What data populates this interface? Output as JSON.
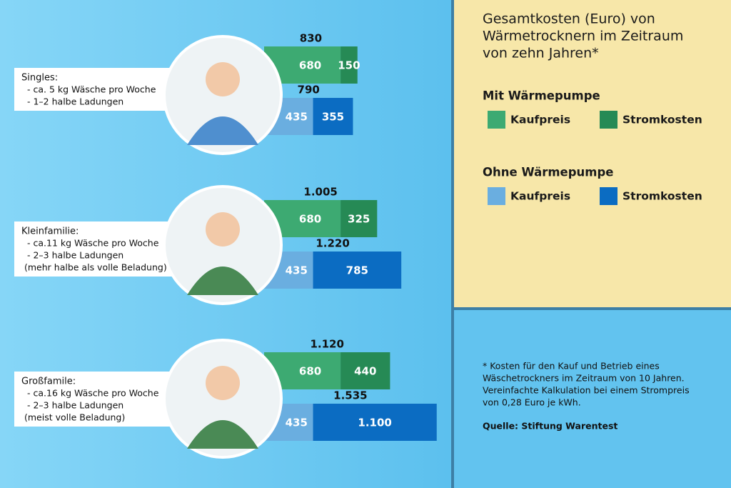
{
  "chart_data": {
    "type": "stacked-bar",
    "title": [
      "Gesamtkosten (Euro) von",
      "Wärmetrocknern im Zeitraum",
      "von zehn Jahren*"
    ],
    "categories": [
      "Singles:",
      "Kleinfamilie:",
      "Großfamile:"
    ],
    "category_notes": [
      [
        "- ca. 5 kg Wäsche pro Woche",
        "- 1–2 halbe Ladungen"
      ],
      [
        "- ca.11 kg Wäsche pro Woche",
        "- 2–3 halbe Ladungen",
        "(mehr halbe als volle Beladung)"
      ],
      [
        "- ca.16 kg Wäsche pro Woche",
        "- 2–3 halbe Ladungen",
        "(meist volle Beladung)"
      ]
    ],
    "stacks": [
      {
        "title": "Mit Wärmepumpe",
        "totals": [
          830,
          1005,
          1120
        ],
        "total_labels": [
          "830",
          "1.005",
          "1.120"
        ],
        "series": [
          {
            "name": "Kaufpreis",
            "color": "#3daa72",
            "values": [
              680,
              680,
              680
            ]
          },
          {
            "name": "Stromkosten",
            "color": "#268a55",
            "values": [
              150,
              325,
              440
            ]
          }
        ]
      },
      {
        "title": "Ohne Wärmepumpe",
        "totals": [
          790,
          1220,
          1535
        ],
        "total_labels": [
          "790",
          "1.220",
          "1.535"
        ],
        "series": [
          {
            "name": "Kaufpreis",
            "color": "#6aaee0",
            "values": [
              435,
              435,
              435
            ]
          },
          {
            "name": "Stromkosten",
            "color": "#0b6cc2",
            "values": [
              355,
              785,
              1100
            ],
            "value_labels": [
              "355",
              "785",
              "1.100"
            ]
          }
        ]
      }
    ],
    "footnote": [
      "* Kosten für den Kauf und Betrieb eines",
      "Wäschetrockners im Zeitraum von 10 Jahren.",
      "Vereinfachte Kalkulation bei einem Strompreis",
      "von 0,28 Euro je kWh."
    ],
    "source": "Quelle: Stiftung Warentest"
  }
}
